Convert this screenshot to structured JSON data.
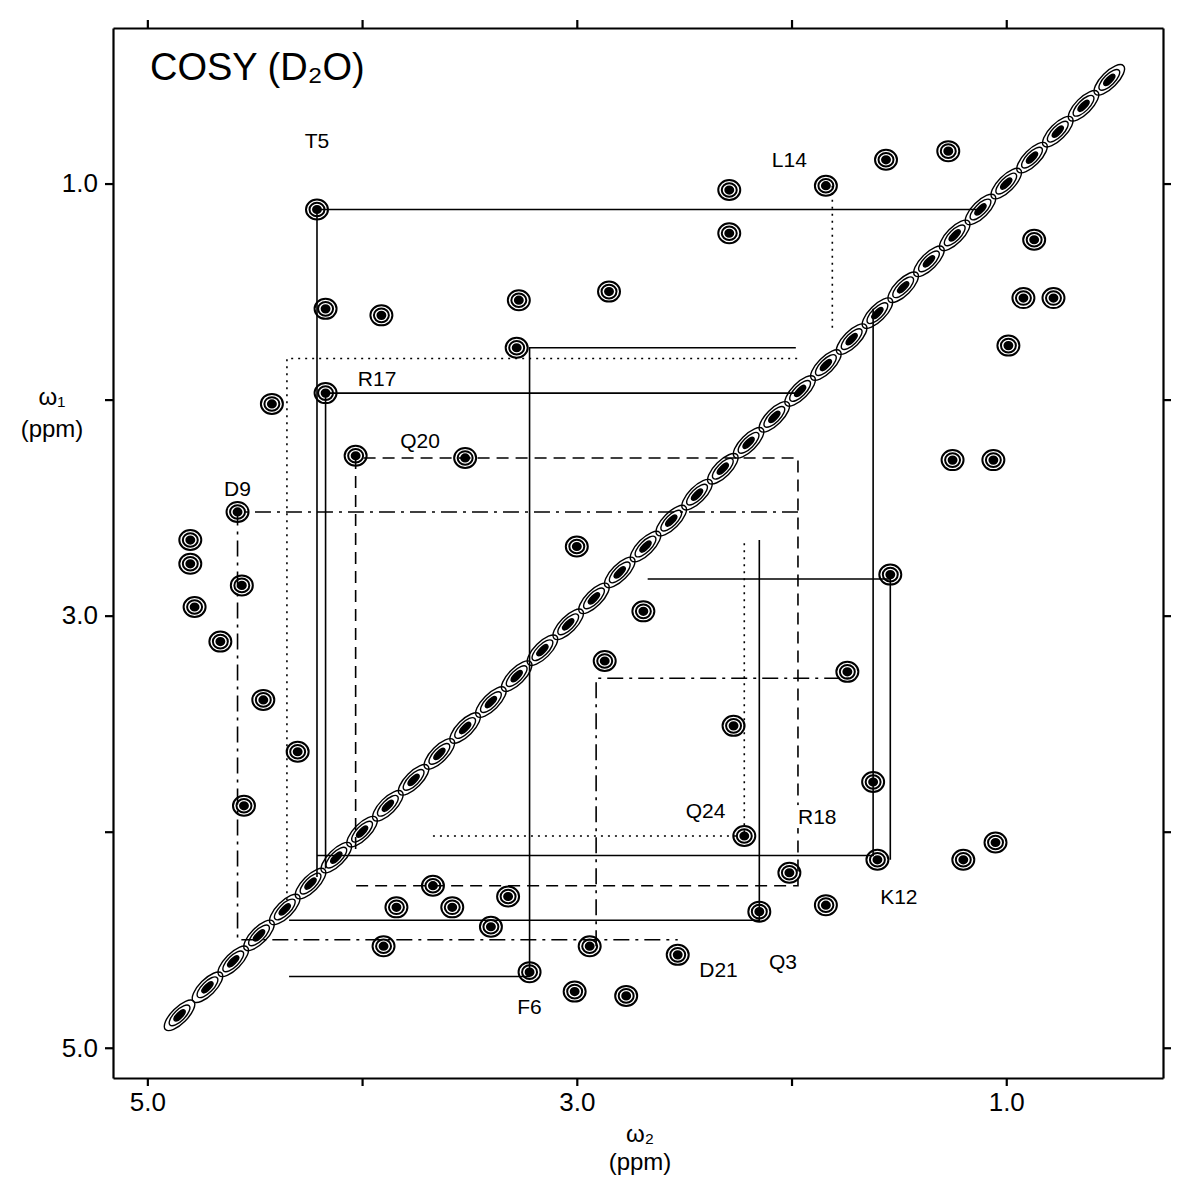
{
  "chart_data": {
    "type": "contour",
    "title": "COSY (D₂O)",
    "xlabel": "ω₂ (ppm)",
    "ylabel": "ω₁ (ppm)",
    "xlim": [
      5.16,
      0.27
    ],
    "ylim": [
      0.28,
      5.14
    ],
    "xticks": [
      {
        "value": 5,
        "label": "5.0"
      },
      {
        "value": 4,
        "label": null
      },
      {
        "value": 3,
        "label": "3.0"
      },
      {
        "value": 2,
        "label": null
      },
      {
        "value": 1,
        "label": "1.0"
      }
    ],
    "yticks": [
      {
        "value": 1,
        "label": "1.0"
      },
      {
        "value": 2,
        "label": null
      },
      {
        "value": 3,
        "label": "3.0"
      },
      {
        "value": 4,
        "label": null
      },
      {
        "value": 5,
        "label": "5.0"
      }
    ],
    "grid": false,
    "x": [
      4.21,
      4.17,
      3.91,
      3.28,
      3.27,
      2.85,
      2.29,
      2.29,
      4.42,
      4.17,
      4.03,
      3.52,
      4.58,
      4.8,
      4.8,
      4.56,
      4.78,
      4.66,
      4.46,
      4.3,
      4.55,
      1.84,
      1.56,
      1.27,
      3.0,
      2.69,
      2.87,
      2.27,
      2.22,
      2.01,
      2.15,
      1.84,
      1.62,
      1.6,
      1.2,
      1.05,
      1.74,
      1.54,
      1.25,
      1.06,
      0.87,
      0.92,
      0.78,
      0.99,
      3.67,
      3.9,
      3.4,
      3.84,
      3.58,
      3.22,
      2.94,
      2.53,
      3.01,
      2.77,
      3.32,
      4.85,
      4.72,
      4.6,
      4.48,
      4.36,
      4.24,
      4.12,
      4.0,
      3.88,
      3.76,
      3.64,
      3.52,
      3.4,
      3.28,
      3.16,
      3.04,
      2.92,
      2.8,
      2.68,
      2.56,
      2.44,
      2.32,
      2.2,
      2.08,
      1.96,
      1.84,
      1.72,
      1.6,
      1.48,
      1.36,
      1.24,
      1.12,
      1.0,
      0.88,
      0.76,
      0.64,
      0.52
    ],
    "y": [
      1.12,
      1.58,
      1.61,
      1.76,
      1.54,
      1.5,
      1.03,
      1.23,
      2.02,
      1.97,
      2.26,
      2.27,
      2.52,
      2.65,
      2.76,
      2.86,
      2.96,
      3.12,
      3.39,
      3.63,
      3.88,
      1.01,
      0.89,
      0.85,
      2.68,
      2.98,
      3.21,
      3.51,
      4.02,
      4.19,
      4.37,
      4.34,
      3.77,
      4.13,
      4.13,
      4.05,
      3.26,
      2.81,
      2.28,
      2.28,
      1.26,
      1.53,
      1.53,
      1.75,
      4.25,
      4.53,
      4.44,
      4.35,
      4.35,
      4.65,
      4.53,
      4.57,
      4.74,
      4.76,
      4.3,
      4.85,
      4.72,
      4.6,
      4.48,
      4.36,
      4.24,
      4.12,
      4.0,
      3.88,
      3.76,
      3.64,
      3.52,
      3.4,
      3.28,
      3.16,
      3.04,
      2.92,
      2.8,
      2.68,
      2.56,
      2.44,
      2.32,
      2.2,
      2.08,
      1.96,
      1.84,
      1.72,
      1.6,
      1.48,
      1.36,
      1.24,
      1.12,
      1.0,
      0.88,
      0.76,
      0.64,
      0.52
    ],
    "spin_systems": [
      {
        "label": "T5",
        "label_x": 4.21,
        "label_y": 0.8,
        "line_style": "solid",
        "x": [
          4.21,
          4.21,
          1.12
        ],
        "y": [
          4.21,
          1.12,
          1.12
        ]
      },
      {
        "label": "L14",
        "label_x": 2.01,
        "label_y": 0.89,
        "line_style": "dotted",
        "x": [
          4.35,
          4.35,
          1.97,
          null,
          1.81,
          1.81
        ],
        "y": [
          4.35,
          1.81,
          1.81,
          null,
          1.01,
          1.68
        ]
      },
      {
        "label": "R17",
        "label_x": 3.93,
        "label_y": 1.9,
        "line_style": "solid",
        "x": [
          4.17,
          4.17,
          1.97
        ],
        "y": [
          4.17,
          1.97,
          1.97
        ]
      },
      {
        "label": "Q20",
        "label_x": 3.73,
        "label_y": 2.19,
        "line_style": "dashed",
        "x": [
          4.03,
          4.03,
          1.97,
          1.97,
          4.03
        ],
        "y": [
          4.08,
          2.27,
          2.27,
          4.25,
          4.25
        ]
      },
      {
        "label": "D9",
        "label_x": 4.58,
        "label_y": 2.41,
        "line_style": "dashdot",
        "x": [
          1.97,
          4.58,
          4.58,
          2.53
        ],
        "y": [
          2.52,
          2.52,
          4.5,
          4.5
        ]
      },
      {
        "label": "F6",
        "label_x": 3.22,
        "label_y": 4.81,
        "line_style": "solid",
        "x": [
          1.98,
          3.22,
          3.22,
          4.34
        ],
        "y": [
          1.76,
          1.76,
          4.67,
          4.67
        ]
      },
      {
        "label": "D21",
        "label_x": 2.34,
        "label_y": 4.64,
        "line_style": "dashdot",
        "x": [
          2.91,
          2.91,
          1.72
        ],
        "y": [
          4.53,
          3.29,
          3.29
        ]
      },
      {
        "label": "Q24",
        "label_x": 2.4,
        "label_y": 3.9,
        "line_style": "dotted",
        "x": [
          3.67,
          2.22,
          2.22
        ],
        "y": [
          4.02,
          4.02,
          2.65
        ]
      },
      {
        "label": "Q3",
        "label_x": 2.04,
        "label_y": 4.6,
        "line_style": "solid",
        "x": [
          4.34,
          2.15,
          2.15
        ],
        "y": [
          4.41,
          4.41,
          2.65
        ]
      },
      {
        "label": "R18",
        "label_x": 1.88,
        "label_y": 3.93,
        "line_style": "solid",
        "x": [
          4.21,
          1.62,
          1.62
        ],
        "y": [
          4.11,
          4.11,
          1.58
        ]
      },
      {
        "label": "K12",
        "label_x": 1.5,
        "label_y": 4.3,
        "line_style": "solid",
        "x": [
          2.67,
          1.54,
          1.54
        ],
        "y": [
          2.83,
          2.83,
          4.13
        ]
      }
    ]
  }
}
